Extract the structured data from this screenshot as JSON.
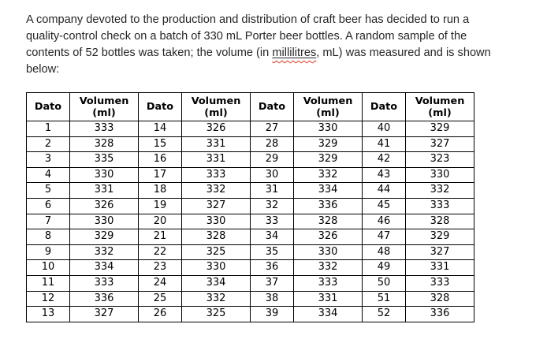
{
  "intro": {
    "line1": "A company devoted to the production and distribution of craft beer has decided to run a",
    "line2": "quality-control check on a batch of 330 mL Porter beer bottles. A random sample of the",
    "line3_pre": "contents of 52 bottles was taken; the volume (in ",
    "line3_misspelled": "millilitres",
    "line3_post": ", mL) was measured and is shown",
    "line4": "below:"
  },
  "table": {
    "header_dato": "Dato",
    "header_volumen": "Volumen (ml)",
    "group_count": 4,
    "rows": [
      [
        1,
        333,
        14,
        326,
        27,
        330,
        40,
        329
      ],
      [
        2,
        328,
        15,
        331,
        28,
        329,
        41,
        327
      ],
      [
        3,
        335,
        16,
        331,
        29,
        329,
        42,
        323
      ],
      [
        4,
        330,
        17,
        333,
        30,
        332,
        43,
        330
      ],
      [
        5,
        331,
        18,
        332,
        31,
        334,
        44,
        332
      ],
      [
        6,
        326,
        19,
        327,
        32,
        336,
        45,
        333
      ],
      [
        7,
        330,
        20,
        330,
        33,
        328,
        46,
        328
      ],
      [
        8,
        329,
        21,
        328,
        34,
        326,
        47,
        329
      ],
      [
        9,
        332,
        22,
        325,
        35,
        330,
        48,
        327
      ],
      [
        10,
        334,
        23,
        330,
        36,
        332,
        49,
        331
      ],
      [
        11,
        333,
        24,
        334,
        37,
        333,
        50,
        333
      ],
      [
        12,
        336,
        25,
        332,
        38,
        331,
        51,
        328
      ],
      [
        13,
        327,
        26,
        325,
        39,
        334,
        52,
        336
      ]
    ]
  },
  "colors": {
    "text": "#262626",
    "table_border": "#000000",
    "squiggle_red": "#e8331c",
    "background": "#ffffff"
  }
}
